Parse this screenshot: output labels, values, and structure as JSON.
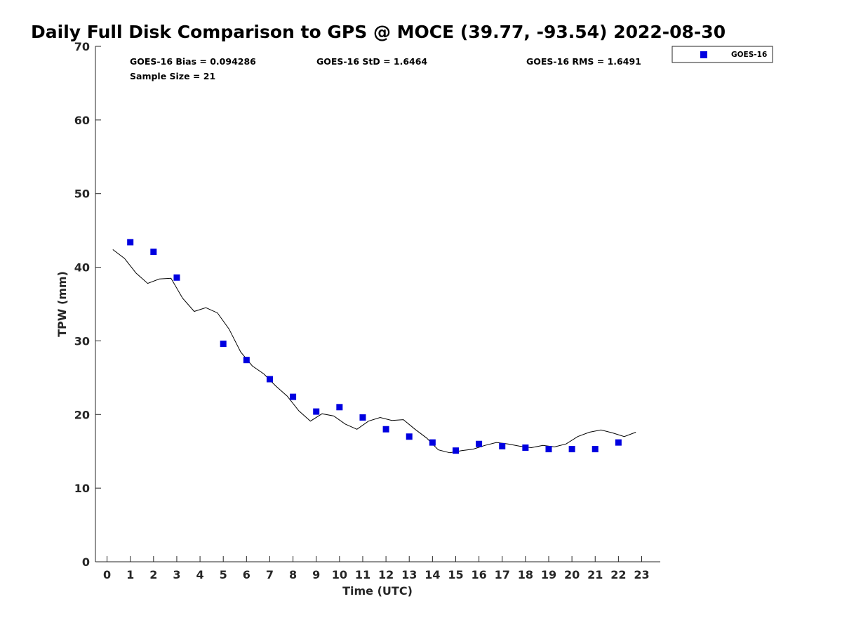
{
  "chart_data": {
    "type": "scatter",
    "title": "Daily Full Disk Comparison to GPS @ MOCE (39.77, -93.54) 2022-08-30",
    "xlabel": "Time (UTC)",
    "ylabel": "TPW (mm)",
    "xlim": [
      -0.5,
      23.8
    ],
    "ylim": [
      0,
      70
    ],
    "x_ticks": [
      0,
      1,
      2,
      3,
      4,
      5,
      6,
      7,
      8,
      9,
      10,
      11,
      12,
      13,
      14,
      15,
      16,
      17,
      18,
      19,
      20,
      21,
      22,
      23
    ],
    "y_ticks": [
      0,
      10,
      20,
      30,
      40,
      50,
      60,
      70
    ],
    "grid": false,
    "legend_position": "top-right-outside",
    "series": [
      {
        "name": "GOES-16",
        "kind": "scatter",
        "marker": "square",
        "color": "#0000e0",
        "x": [
          1,
          2,
          3,
          5,
          6,
          7,
          8,
          9,
          10,
          11,
          12,
          13,
          14,
          15,
          16,
          17,
          18,
          19,
          20,
          21,
          22
        ],
        "y": [
          43.4,
          42.1,
          38.6,
          29.6,
          27.4,
          24.8,
          22.4,
          20.4,
          21.0,
          19.6,
          18.0,
          17.0,
          16.2,
          15.1,
          16.0,
          15.7,
          15.5,
          15.3,
          15.3,
          15.3,
          16.2
        ]
      },
      {
        "name": "GPS",
        "kind": "line",
        "color": "#000000",
        "x": [
          0.25,
          0.75,
          1.25,
          1.75,
          2.25,
          2.75,
          3.25,
          3.75,
          4.25,
          4.75,
          5.25,
          5.75,
          6.25,
          6.75,
          7.25,
          7.75,
          8.25,
          8.75,
          9.25,
          9.75,
          10.25,
          10.75,
          11.25,
          11.75,
          12.25,
          12.75,
          13.25,
          13.75,
          14.25,
          14.75,
          15.25,
          15.75,
          16.25,
          16.75,
          17.25,
          17.75,
          18.25,
          18.75,
          19.25,
          19.75,
          20.25,
          20.75,
          21.25,
          21.75,
          22.25,
          22.75
        ],
        "y": [
          42.4,
          41.2,
          39.2,
          37.8,
          38.4,
          38.5,
          35.8,
          34.0,
          34.5,
          33.8,
          31.6,
          28.5,
          26.6,
          25.5,
          23.9,
          22.5,
          20.5,
          19.1,
          20.1,
          19.8,
          18.7,
          18.0,
          19.1,
          19.6,
          19.2,
          19.3,
          18.0,
          16.8,
          15.2,
          14.8,
          15.1,
          15.3,
          15.8,
          16.2,
          16.0,
          15.7,
          15.5,
          15.8,
          15.6,
          16.0,
          17.0,
          17.6,
          17.9,
          17.5,
          17.0,
          17.6
        ]
      }
    ],
    "annotations": {
      "bias": "GOES-16 Bias = 0.094286",
      "std": "GOES-16 StD = 1.6464",
      "rms": "GOES-16 RMS = 1.6491",
      "sample": "Sample Size = 21"
    },
    "legend": [
      "GOES-16"
    ]
  }
}
